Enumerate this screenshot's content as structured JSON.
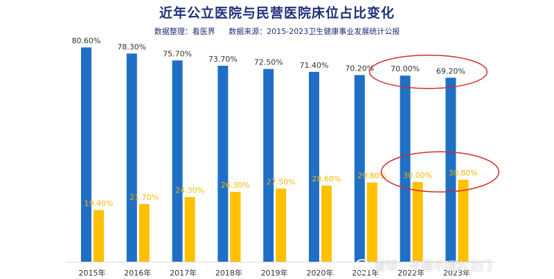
{
  "chart_data": {
    "type": "bar",
    "title": "近年公立医院与民营医院床位占比变化",
    "subtitle_compiler": "数据整理：看医界",
    "subtitle_source": "数据来源：2015-2023卫生健康事业发展统计公报",
    "categories": [
      "2015年",
      "2016年",
      "2017年",
      "2018年",
      "2019年",
      "2020年",
      "2021年",
      "2022年",
      "2023年"
    ],
    "series": [
      {
        "color": "#1f6fc6",
        "values": [
          80.6,
          78.3,
          75.7,
          73.7,
          72.5,
          71.4,
          70.2,
          70.0,
          69.2
        ],
        "labels": [
          "80.60%",
          "78.30%",
          "75.70%",
          "73.70%",
          "72.50%",
          "71.40%",
          "70.20%",
          "70.00%",
          "69.20%"
        ]
      },
      {
        "color": "#ffc000",
        "values": [
          19.4,
          21.7,
          24.3,
          26.3,
          27.5,
          28.6,
          29.8,
          30.0,
          30.8
        ],
        "labels": [
          "19.40%",
          "21.70%",
          "24.30%",
          "26.30%",
          "27.50%",
          "28.60%",
          "29.80%",
          "30.00%",
          "30.80%"
        ]
      }
    ],
    "ylim": [
      0,
      100
    ],
    "grid": false,
    "legend": "none",
    "annotations": [
      {
        "shape": "ellipse",
        "color": "#d22b2b",
        "highlights": [
          "2022年",
          "2023年"
        ],
        "series": 0
      },
      {
        "shape": "ellipse",
        "color": "#d22b2b",
        "highlights": [
          "2022年",
          "2023年"
        ],
        "series": 1
      }
    ]
  },
  "watermark": {
    "text": "雪球：不理不理右卫门",
    "icon": "snowball-logo-icon"
  }
}
